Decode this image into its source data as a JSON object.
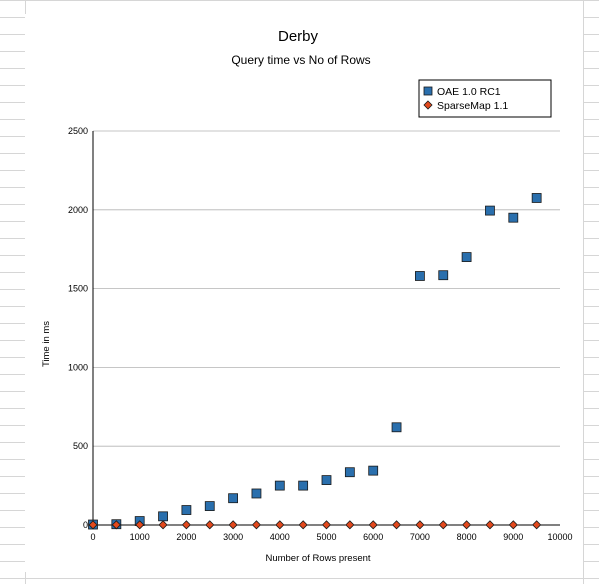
{
  "chart_data": {
    "type": "scatter",
    "title": "Derby",
    "subtitle": "Query time vs No of Rows",
    "xlabel": "Number of Rows present",
    "ylabel": "Time in ms",
    "xlim": [
      0,
      10000
    ],
    "ylim": [
      0,
      2500
    ],
    "x_ticks": [
      "0",
      "1000",
      "2000",
      "3000",
      "4000",
      "5000",
      "6000",
      "7000",
      "8000",
      "9000",
      "10000"
    ],
    "y_ticks": [
      "0",
      "500",
      "1000",
      "1500",
      "2000",
      "2500"
    ],
    "grid": "horizontal",
    "legend_position": "top-right",
    "series": [
      {
        "name": "OAE 1.0 RC1",
        "marker": "square",
        "color": "#2a6fad",
        "x": [
          0,
          500,
          1000,
          1500,
          2000,
          2500,
          3000,
          3500,
          4000,
          4500,
          5000,
          5500,
          6000,
          6500,
          7000,
          7500,
          8000,
          8500,
          9000,
          9500
        ],
        "y": [
          3,
          5,
          25,
          55,
          95,
          120,
          170,
          200,
          250,
          250,
          285,
          335,
          345,
          620,
          1580,
          1585,
          1700,
          1995,
          1950,
          2075
        ]
      },
      {
        "name": "SparseMap 1.1",
        "marker": "diamond",
        "color": "#e2491d",
        "x": [
          0,
          500,
          1000,
          1500,
          2000,
          2500,
          3000,
          3500,
          4000,
          4500,
          5000,
          5500,
          6000,
          6500,
          7000,
          7500,
          8000,
          8500,
          9000,
          9500
        ],
        "y": [
          1,
          1,
          1,
          1,
          1,
          1,
          1,
          1,
          1,
          1,
          1,
          1,
          1,
          1,
          1,
          1,
          1,
          1,
          1,
          1
        ]
      }
    ]
  }
}
